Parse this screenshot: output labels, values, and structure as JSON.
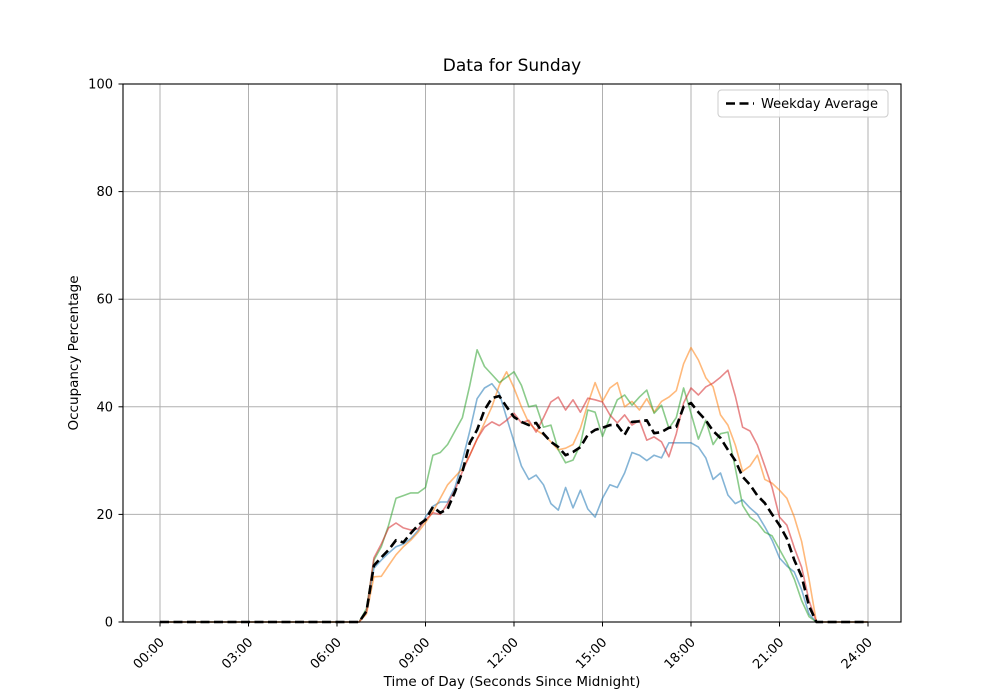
{
  "figure": {
    "title": "Data for Sunday",
    "xlabel": "Time of Day (Seconds Since Midnight)",
    "ylabel": "Occupancy Percentage",
    "legend_label": "Weekday Average"
  },
  "chart_data": {
    "type": "line",
    "title": "Data for Sunday",
    "xlabel": "Time of Day (Seconds Since Midnight)",
    "ylabel": "Occupancy Percentage",
    "grid": true,
    "legend": {
      "entries": [
        "Weekday Average"
      ],
      "position": "upper right"
    },
    "x_axis": {
      "tick_labels": [
        "00:00",
        "03:00",
        "06:00",
        "09:00",
        "12:00",
        "15:00",
        "18:00",
        "21:00",
        "24:00"
      ],
      "tick_hours": [
        0,
        3,
        6,
        9,
        12,
        15,
        18,
        21,
        24
      ],
      "range_hours": [
        0,
        24
      ],
      "label_rotation_deg": 45
    },
    "y_axis": {
      "ticks": [
        0,
        20,
        40,
        60,
        80,
        100
      ],
      "range": [
        0,
        100
      ]
    },
    "sample_step_hours": 0.25,
    "colors": {
      "grid": "#b0b0b0",
      "frame": "#000000",
      "legend_border": "#cccccc"
    },
    "series": [
      {
        "name": "series-1",
        "color": "#1f77b4",
        "opacity": 0.55,
        "style": "solid",
        "width": 1.6,
        "values": [
          0,
          0,
          0,
          0,
          0,
          0,
          0,
          0,
          0,
          0,
          0,
          0,
          0,
          0,
          0,
          0,
          0,
          0,
          0,
          0,
          0,
          0,
          0,
          0,
          0,
          0,
          0,
          0,
          2.0,
          10.0,
          11.5,
          12.8,
          14.0,
          14.5,
          15.5,
          17.0,
          19.5,
          21.5,
          22.3,
          22.3,
          25.0,
          30.0,
          35.5,
          41.5,
          43.5,
          44.3,
          42.5,
          38.0,
          33.5,
          29.0,
          26.5,
          27.3,
          25.5,
          22.0,
          20.8,
          25.0,
          21.2,
          24.5,
          21.0,
          19.5,
          23.0,
          25.5,
          25.0,
          27.7,
          31.5,
          31.0,
          30.0,
          31.0,
          30.5,
          33.3,
          33.3,
          33.3,
          33.3,
          32.5,
          30.5,
          26.5,
          27.7,
          23.6,
          22.0,
          22.7,
          21.2,
          20.0,
          17.7,
          15.2,
          11.9,
          10.4,
          9.3,
          6.0,
          1.5,
          0,
          0,
          0,
          0,
          0,
          0,
          0,
          0
        ]
      },
      {
        "name": "series-2",
        "color": "#ff7f0e",
        "opacity": 0.55,
        "style": "solid",
        "width": 1.6,
        "values": [
          0,
          0,
          0,
          0,
          0,
          0,
          0,
          0,
          0,
          0,
          0,
          0,
          0,
          0,
          0,
          0,
          0,
          0,
          0,
          0,
          0,
          0,
          0,
          0,
          0,
          0,
          0,
          0,
          1.5,
          8.4,
          8.5,
          10.5,
          12.5,
          14.0,
          15.2,
          16.7,
          18.5,
          20.5,
          23.0,
          25.5,
          27.0,
          28.5,
          31.0,
          34.0,
          37.0,
          40.0,
          44.0,
          46.5,
          43.5,
          40.0,
          37.0,
          35.7,
          34.8,
          33.5,
          32.0,
          32.3,
          33.0,
          36.0,
          40.5,
          44.5,
          41.0,
          43.5,
          44.5,
          40.0,
          41.0,
          39.4,
          41.5,
          39.0,
          41.0,
          41.8,
          43.0,
          48.0,
          51.0,
          48.7,
          45.4,
          43.7,
          38.5,
          36.6,
          32.9,
          28.0,
          29.0,
          31.0,
          26.5,
          25.8,
          24.5,
          23.0,
          19.5,
          15.0,
          8.0,
          0,
          0,
          0,
          0,
          0,
          0,
          0,
          0
        ]
      },
      {
        "name": "series-3",
        "color": "#2ca02c",
        "opacity": 0.55,
        "style": "solid",
        "width": 1.6,
        "values": [
          0,
          0,
          0,
          0,
          0,
          0,
          0,
          0,
          0,
          0,
          0,
          0,
          0,
          0,
          0,
          0,
          0,
          0,
          0,
          0,
          0,
          0,
          0,
          0,
          0,
          0,
          0,
          0,
          2.5,
          11.5,
          14.0,
          18.0,
          23.0,
          23.5,
          24.0,
          24.0,
          25.0,
          31.0,
          31.5,
          33.0,
          35.5,
          38.0,
          44.0,
          50.6,
          47.5,
          46.0,
          44.5,
          45.5,
          46.5,
          44.0,
          40.0,
          40.3,
          36.2,
          36.6,
          32.0,
          29.6,
          30.1,
          33.0,
          39.4,
          39.0,
          34.5,
          38.0,
          41.3,
          42.2,
          40.3,
          41.8,
          43.1,
          38.8,
          40.3,
          36.0,
          38.0,
          43.5,
          38.8,
          34.0,
          37.5,
          33.0,
          35.0,
          35.3,
          28.6,
          21.7,
          19.5,
          18.5,
          16.7,
          16.0,
          13.5,
          11.0,
          8.0,
          4.0,
          1.0,
          0,
          0,
          0,
          0,
          0,
          0,
          0,
          0
        ]
      },
      {
        "name": "series-4",
        "color": "#d62728",
        "opacity": 0.55,
        "style": "solid",
        "width": 1.6,
        "values": [
          0,
          0,
          0,
          0,
          0,
          0,
          0,
          0,
          0,
          0,
          0,
          0,
          0,
          0,
          0,
          0,
          0,
          0,
          0,
          0,
          0,
          0,
          0,
          0,
          0,
          0,
          0,
          0,
          2.0,
          11.9,
          14.5,
          17.5,
          18.4,
          17.5,
          17.1,
          17.3,
          19.0,
          20.3,
          20.0,
          22.0,
          24.5,
          28.0,
          31.0,
          34.0,
          36.2,
          37.2,
          36.5,
          37.5,
          38.8,
          37.0,
          37.5,
          35.3,
          38.0,
          40.9,
          41.8,
          39.4,
          41.3,
          39.0,
          41.6,
          41.3,
          40.9,
          38.5,
          37.0,
          38.5,
          36.6,
          37.5,
          33.8,
          34.4,
          33.5,
          30.7,
          35.0,
          40.7,
          43.5,
          42.2,
          43.7,
          44.4,
          45.5,
          46.8,
          42.0,
          36.2,
          35.5,
          32.9,
          29.0,
          25.0,
          19.5,
          18.0,
          13.8,
          10.2,
          4.0,
          0,
          0,
          0,
          0,
          0,
          0,
          0,
          0
        ]
      },
      {
        "name": "Weekday Average",
        "color": "#000000",
        "opacity": 1,
        "style": "dashed",
        "width": 2.6,
        "values": [
          0,
          0,
          0,
          0,
          0,
          0,
          0,
          0,
          0,
          0,
          0,
          0,
          0,
          0,
          0,
          0,
          0,
          0,
          0,
          0,
          0,
          0,
          0,
          0,
          0,
          0,
          0,
          0,
          2.0,
          10.5,
          12.0,
          13.4,
          15.2,
          14.8,
          16.5,
          18.0,
          19.0,
          21.4,
          20.3,
          21.0,
          24.2,
          27.9,
          33.3,
          35.7,
          39.4,
          41.6,
          42.0,
          40.0,
          38.1,
          37.2,
          36.6,
          37.0,
          35.0,
          33.5,
          32.5,
          31.0,
          31.6,
          32.5,
          34.8,
          35.7,
          36.1,
          36.6,
          36.6,
          34.8,
          37.2,
          37.3,
          37.5,
          35.1,
          35.3,
          36.1,
          36.3,
          40.0,
          40.7,
          39.0,
          37.5,
          35.5,
          34.2,
          32.0,
          30.0,
          27.0,
          25.5,
          23.5,
          22.1,
          20.0,
          18.0,
          15.5,
          11.5,
          8.5,
          3.0,
          0,
          0,
          0,
          0,
          0,
          0,
          0,
          0
        ]
      }
    ]
  }
}
